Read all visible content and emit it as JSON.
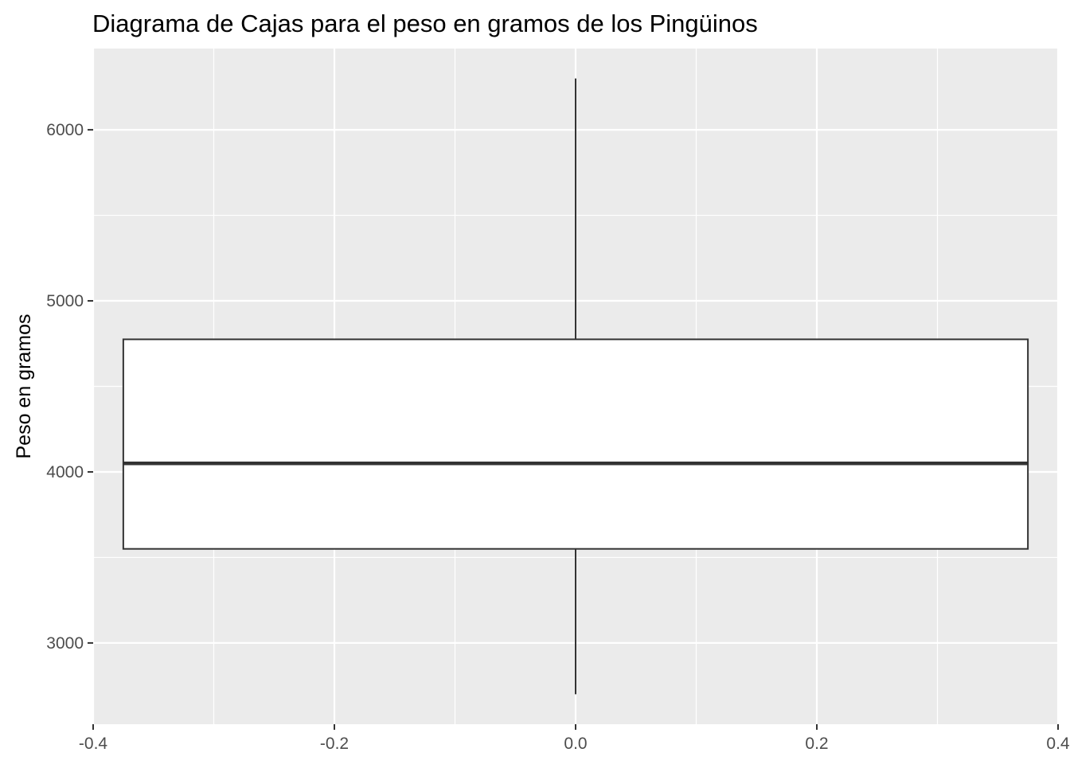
{
  "chart_data": {
    "type": "boxplot",
    "title": "Diagrama de Cajas para el peso en gramos de los Pingüinos",
    "xlabel": "",
    "ylabel": "Peso en gramos",
    "xlim": [
      -0.4,
      0.4
    ],
    "ylim": [
      2525,
      6475
    ],
    "x_ticks": [
      -0.4,
      -0.2,
      0.0,
      0.2,
      0.4
    ],
    "x_tick_labels": [
      "-0.4",
      "-0.2",
      "0.0",
      "0.2",
      "0.4"
    ],
    "y_ticks": [
      3000,
      4000,
      5000,
      6000
    ],
    "y_tick_labels": [
      "3000",
      "4000",
      "5000",
      "6000"
    ],
    "grid": true,
    "legend": "none",
    "box": {
      "x_center": 0.0,
      "x_left": -0.375,
      "x_right": 0.375,
      "whisker_low": 2700,
      "q1": 3550,
      "median": 4050,
      "q3": 4775,
      "whisker_high": 6300
    },
    "colors": {
      "panel_background": "#ebebeb",
      "grid": "#ffffff",
      "box_fill": "#ffffff",
      "box_stroke": "#333333"
    }
  }
}
